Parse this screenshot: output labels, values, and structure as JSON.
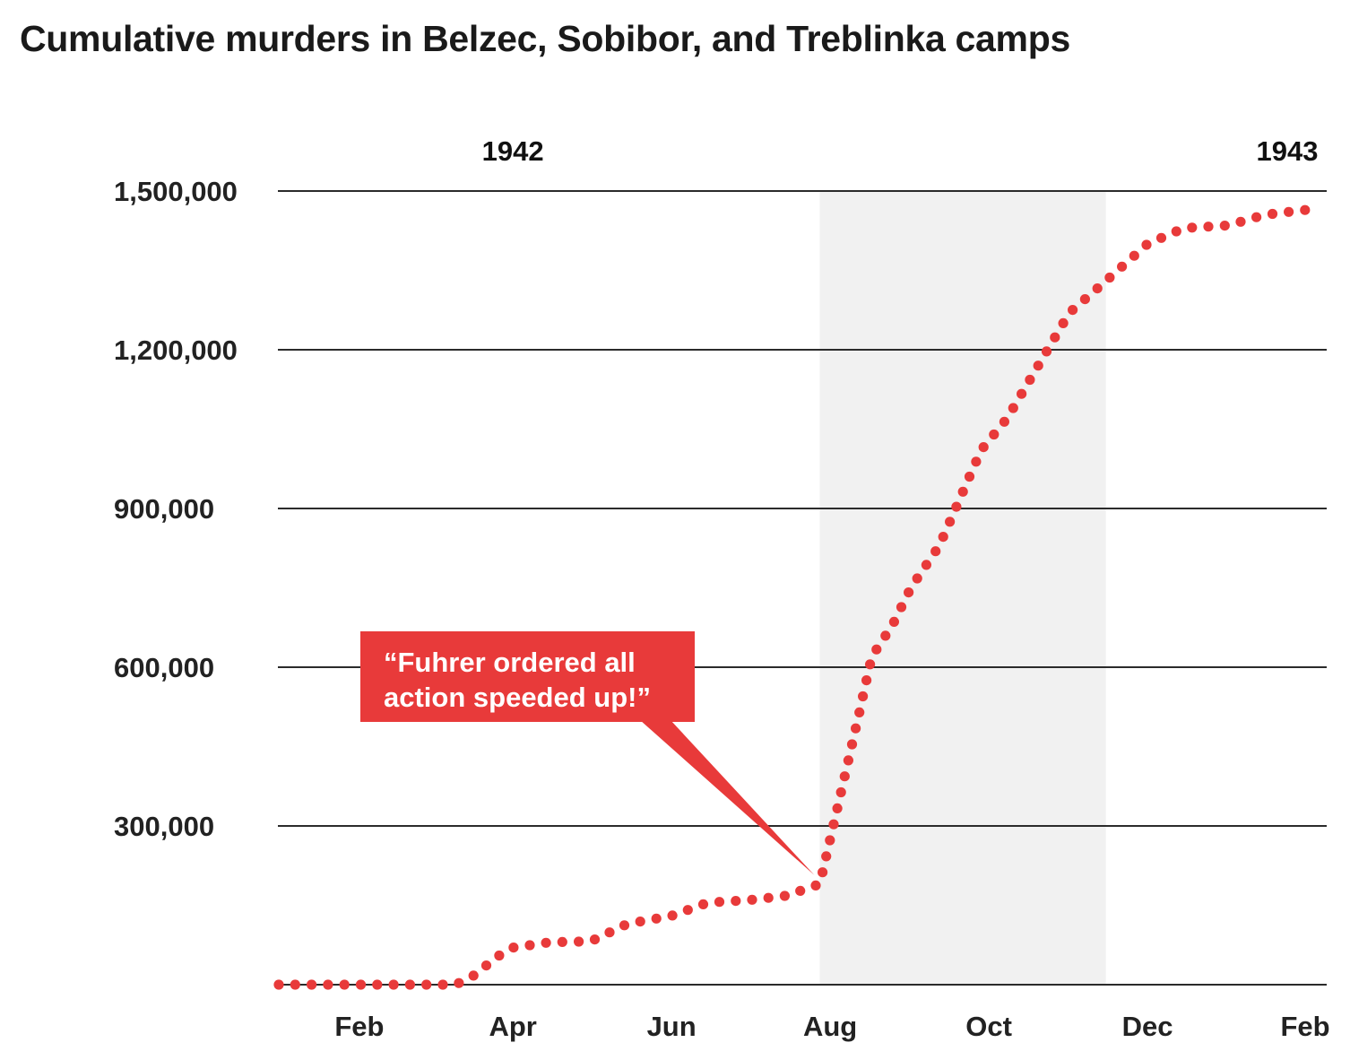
{
  "chart_data": {
    "type": "line",
    "title": "Cumulative murders in Belzec, Sobibor, and Treblinka camps",
    "xlabel": "",
    "ylabel": "",
    "ylim": [
      0,
      1500000
    ],
    "y_ticks": [
      300000,
      600000,
      900000,
      1200000,
      1500000
    ],
    "y_tick_labels": [
      "300,000",
      "600,000",
      "900,000",
      "1,200,000",
      "1,500,000"
    ],
    "x_ticks": [
      "1942-02-01",
      "1942-04-01",
      "1942-06-01",
      "1942-08-01",
      "1942-10-01",
      "1942-12-01",
      "1943-02-01"
    ],
    "x_tick_labels": [
      "Feb",
      "Apr",
      "Jun",
      "Aug",
      "Oct",
      "Dec",
      "Feb"
    ],
    "year_labels": [
      {
        "label": "1942",
        "date": "1942-04-01"
      },
      {
        "label": "1943",
        "date": "1943-02-01"
      }
    ],
    "xlim": [
      "1942-01-01",
      "1943-02-01"
    ],
    "grid": "horizontal",
    "line_style": "dotted",
    "series_color": "#e83a3a",
    "highlight_band": {
      "start": "1942-07-28",
      "end": "1942-11-15",
      "color": "#f1f1f1"
    },
    "annotation": {
      "lines": [
        "“Fuhrer ordered all",
        "action speeded up!”"
      ],
      "points_to": {
        "date": "1942-07-28",
        "value": 190000
      },
      "background": "#e83a3a"
    },
    "series": [
      {
        "points": [
          {
            "date": "1942-01-01",
            "value": 0
          },
          {
            "date": "1942-03-10",
            "value": 0
          },
          {
            "date": "1942-03-18",
            "value": 20000
          },
          {
            "date": "1942-03-25",
            "value": 50000
          },
          {
            "date": "1942-04-01",
            "value": 70000
          },
          {
            "date": "1942-04-15",
            "value": 80000
          },
          {
            "date": "1942-05-01",
            "value": 82000
          },
          {
            "date": "1942-05-15",
            "value": 115000
          },
          {
            "date": "1942-06-01",
            "value": 130000
          },
          {
            "date": "1942-06-15",
            "value": 155000
          },
          {
            "date": "1942-07-01",
            "value": 160000
          },
          {
            "date": "1942-07-15",
            "value": 168000
          },
          {
            "date": "1942-07-28",
            "value": 190000
          },
          {
            "date": "1942-08-05",
            "value": 360000
          },
          {
            "date": "1942-08-12",
            "value": 510000
          },
          {
            "date": "1942-08-17",
            "value": 620000
          },
          {
            "date": "1942-08-25",
            "value": 680000
          },
          {
            "date": "1942-09-01",
            "value": 750000
          },
          {
            "date": "1942-09-12",
            "value": 830000
          },
          {
            "date": "1942-09-20",
            "value": 920000
          },
          {
            "date": "1942-09-28",
            "value": 1010000
          },
          {
            "date": "1942-10-08",
            "value": 1070000
          },
          {
            "date": "1942-10-20",
            "value": 1170000
          },
          {
            "date": "1942-11-01",
            "value": 1270000
          },
          {
            "date": "1942-11-15",
            "value": 1330000
          },
          {
            "date": "1942-12-01",
            "value": 1400000
          },
          {
            "date": "1942-12-15",
            "value": 1430000
          },
          {
            "date": "1943-01-01",
            "value": 1435000
          },
          {
            "date": "1943-01-15",
            "value": 1455000
          },
          {
            "date": "1943-02-01",
            "value": 1465000
          }
        ]
      }
    ]
  }
}
